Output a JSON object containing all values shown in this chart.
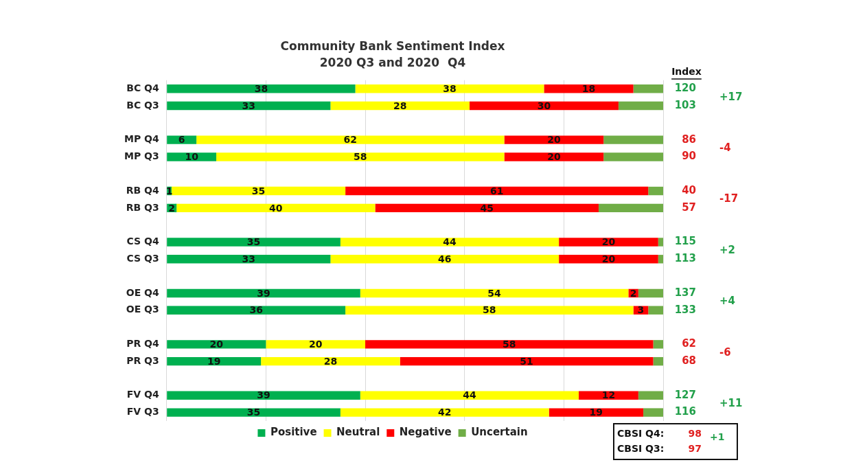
{
  "chart_data": {
    "type": "bar",
    "orientation": "horizontal",
    "stacked": true,
    "title": "Community Bank Sentiment Index",
    "subtitle": "2020 Q3 and 2020  Q4",
    "categories": [
      "BC Q4",
      "BC Q3",
      null,
      "MP Q4",
      "MP Q3",
      null,
      "RB Q4",
      "RB Q3",
      null,
      "CS Q4",
      "CS Q3",
      null,
      "OE Q4",
      "OE Q3",
      null,
      "PR Q4",
      "PR Q3",
      null,
      "FV Q4",
      "FV Q3"
    ],
    "series": [
      {
        "name": "Positive",
        "color": "#00b050",
        "values": [
          38,
          33,
          null,
          6,
          10,
          null,
          1,
          2,
          null,
          35,
          33,
          null,
          39,
          36,
          null,
          20,
          19,
          null,
          39,
          35
        ],
        "value_labels": [
          "38",
          "33",
          null,
          "6",
          "10",
          null,
          "1",
          "2",
          null,
          "35",
          "33",
          null,
          "39",
          "36",
          null,
          "20",
          "19",
          null,
          "39",
          "35"
        ]
      },
      {
        "name": "Neutral",
        "color": "#ffff00",
        "values": [
          38,
          28,
          null,
          62,
          58,
          null,
          35,
          40,
          null,
          44,
          46,
          null,
          54,
          58,
          null,
          20,
          28,
          null,
          44,
          42
        ],
        "value_labels": [
          "38",
          "28",
          null,
          "62",
          "58",
          null,
          "35",
          "40",
          null,
          "44",
          "46",
          null,
          "54",
          "58",
          null,
          "20",
          "28",
          null,
          "44",
          "42"
        ]
      },
      {
        "name": "Negative",
        "color": "#ff0000",
        "values": [
          18,
          30,
          null,
          20,
          20,
          null,
          61,
          45,
          null,
          20,
          20,
          null,
          2,
          3,
          null,
          58,
          51,
          null,
          12,
          19
        ],
        "value_labels": [
          "18",
          "30",
          null,
          "20",
          "20",
          null,
          "61",
          "45",
          null,
          "20",
          "20",
          null,
          "2",
          "3",
          null,
          "58",
          "51",
          null,
          "12",
          "19"
        ]
      },
      {
        "name": "Uncertain",
        "color": "#70ad47",
        "values": [
          6,
          9,
          null,
          12,
          12,
          null,
          3,
          13,
          null,
          1,
          1,
          null,
          5,
          3,
          null,
          2,
          2,
          null,
          5,
          4
        ]
      }
    ],
    "xlim": [
      0,
      100
    ],
    "xticks": [
      {
        "value": 0,
        "label": null
      },
      {
        "value": 20,
        "label": null
      },
      {
        "value": 40,
        "label": null
      },
      {
        "value": 60,
        "label": null
      },
      {
        "value": 80,
        "label": null
      },
      {
        "value": 100,
        "label": null
      }
    ],
    "tick_labels": "y",
    "grid": "x",
    "legend": "bottom",
    "annotations": [
      "Index",
      "CBSI Q4:",
      "98",
      "CBSI Q3:",
      "97",
      "+1",
      "120",
      "103",
      "+17",
      "86",
      "90",
      "-4",
      "40",
      "57",
      "-17",
      "115",
      "113",
      "+2",
      "137",
      "133",
      "+4",
      "62",
      "68",
      "-6",
      "127",
      "116",
      "+11"
    ]
  }
}
